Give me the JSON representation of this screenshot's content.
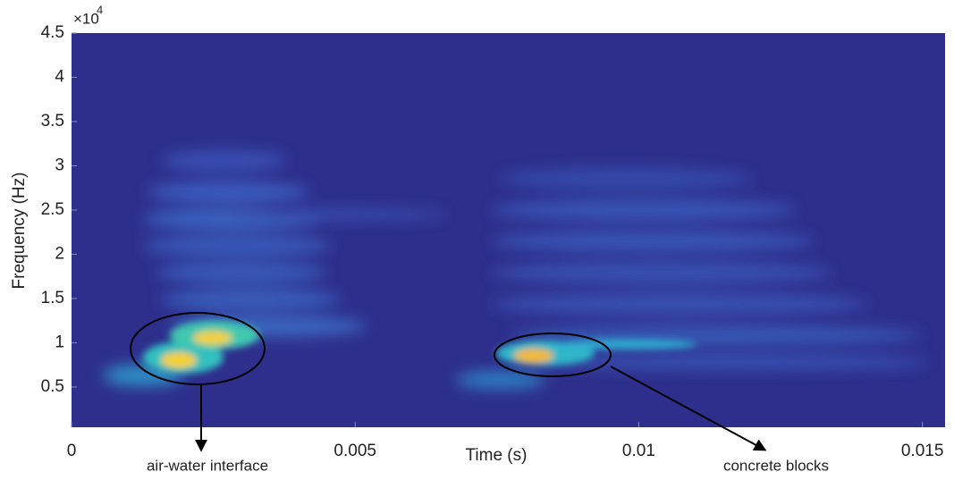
{
  "chart_data": {
    "type": "spectrogram",
    "xlabel": "Time (s)",
    "ylabel": "Frequency (Hz)",
    "y_multiplier": "×10",
    "y_multiplier_exponent": "4",
    "xlim": [
      0,
      0.0154
    ],
    "xticks": [
      0,
      0.005,
      0.01,
      0.015
    ],
    "ylim": [
      450,
      45000
    ],
    "yticks": [
      {
        "value": 5000,
        "label": "0.5"
      },
      {
        "value": 10000,
        "label": "1"
      },
      {
        "value": 15000,
        "label": "1.5"
      },
      {
        "value": 20000,
        "label": "2"
      },
      {
        "value": 25000,
        "label": "2.5"
      },
      {
        "value": 30000,
        "label": "3"
      },
      {
        "value": 35000,
        "label": "3.5"
      },
      {
        "value": 40000,
        "label": "4"
      },
      {
        "value": 45000,
        "label": "4.5"
      }
    ],
    "annotations": [
      {
        "text": "air-water interface"
      },
      {
        "text": "concrete blocks"
      }
    ]
  }
}
